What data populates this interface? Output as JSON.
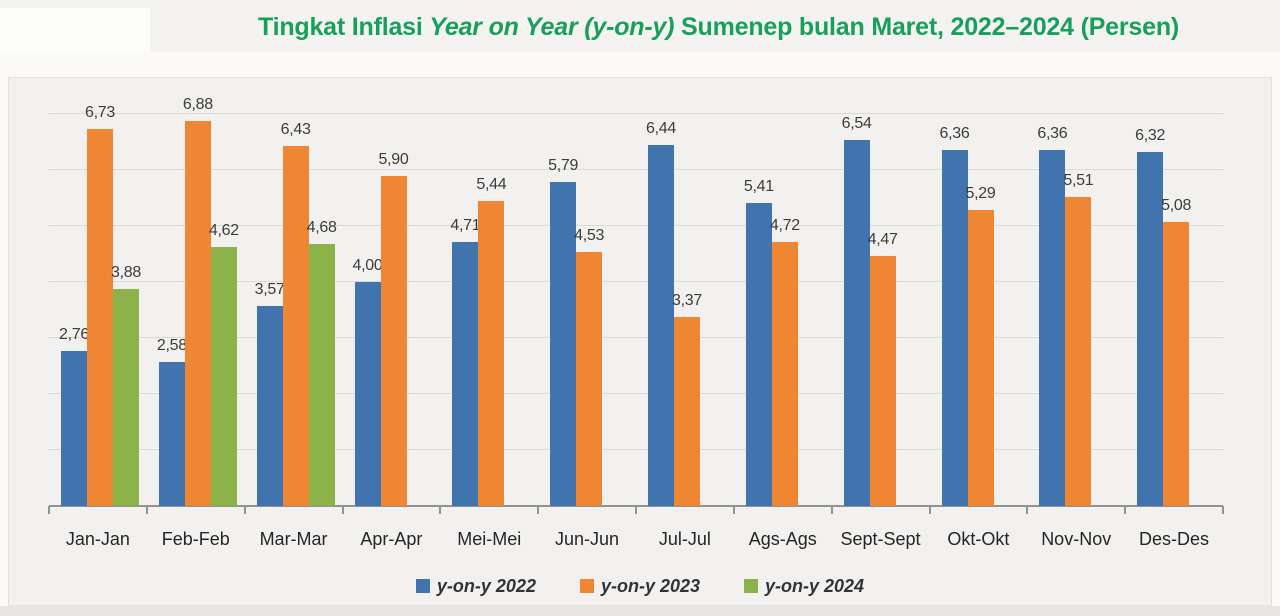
{
  "title": {
    "prefix": "Tingkat Inflasi ",
    "italic": "Year on Year (y-on-y)",
    "suffix": " Sumenep bulan Maret, 2022–2024 (Persen)"
  },
  "colors": {
    "title_green": "#17a05a",
    "series_2022": "#4173ae",
    "series_2023": "#ee8634",
    "series_2024": "#8cb24a",
    "gridline": "#dbd9d5",
    "axis_line": "#929290",
    "panel_bg": "#f2f1ef",
    "value_label_text": "#3c3c3c",
    "category_text": "#252525",
    "legend_text": "#333333"
  },
  "chart_data": {
    "type": "bar",
    "title": "Tingkat Inflasi Year on Year (y-on-y) Sumenep bulan Maret, 2022–2024 (Persen)",
    "xlabel": "",
    "ylabel": "",
    "ylim": [
      0,
      7.6
    ],
    "grid": true,
    "gridline_values": [
      1,
      2,
      3,
      4,
      5,
      6,
      7
    ],
    "legend_position": "bottom",
    "decimal_separator": ",",
    "categories": [
      "Jan-Jan",
      "Feb-Feb",
      "Mar-Mar",
      "Apr-Apr",
      "Mei-Mei",
      "Jun-Jun",
      "Jul-Jul",
      "Ags-Ags",
      "Sept-Sept",
      "Okt-Okt",
      "Nov-Nov",
      "Des-Des"
    ],
    "series": [
      {
        "name": "y-on-y 2022",
        "color_key": "series_2022",
        "values": [
          2.76,
          2.58,
          3.57,
          4.0,
          4.71,
          5.79,
          6.44,
          5.41,
          6.54,
          6.36,
          6.36,
          6.32
        ],
        "labels": [
          "2,76",
          "2,58",
          "3,57",
          "4,00",
          "4,71",
          "5,79",
          "6,44",
          "5,41",
          "6,54",
          "6,36",
          "6,36",
          "6,32"
        ]
      },
      {
        "name": "y-on-y 2023",
        "color_key": "series_2023",
        "values": [
          6.73,
          6.88,
          6.43,
          5.9,
          5.44,
          4.53,
          3.37,
          4.72,
          4.47,
          5.29,
          5.51,
          5.08
        ],
        "labels": [
          "6,73",
          "6,88",
          "6,43",
          "5,90",
          "5,44",
          "4,53",
          "3,37",
          "4,72",
          "4,47",
          "5,29",
          "5,51",
          "5,08"
        ]
      },
      {
        "name": "y-on-y 2024",
        "color_key": "series_2024",
        "values": [
          3.88,
          4.62,
          4.68,
          null,
          null,
          null,
          null,
          null,
          null,
          null,
          null,
          null
        ],
        "labels": [
          "3,88",
          "4,62",
          "4,68",
          "",
          "",
          "",
          "",
          "",
          "",
          "",
          "",
          ""
        ]
      }
    ]
  }
}
